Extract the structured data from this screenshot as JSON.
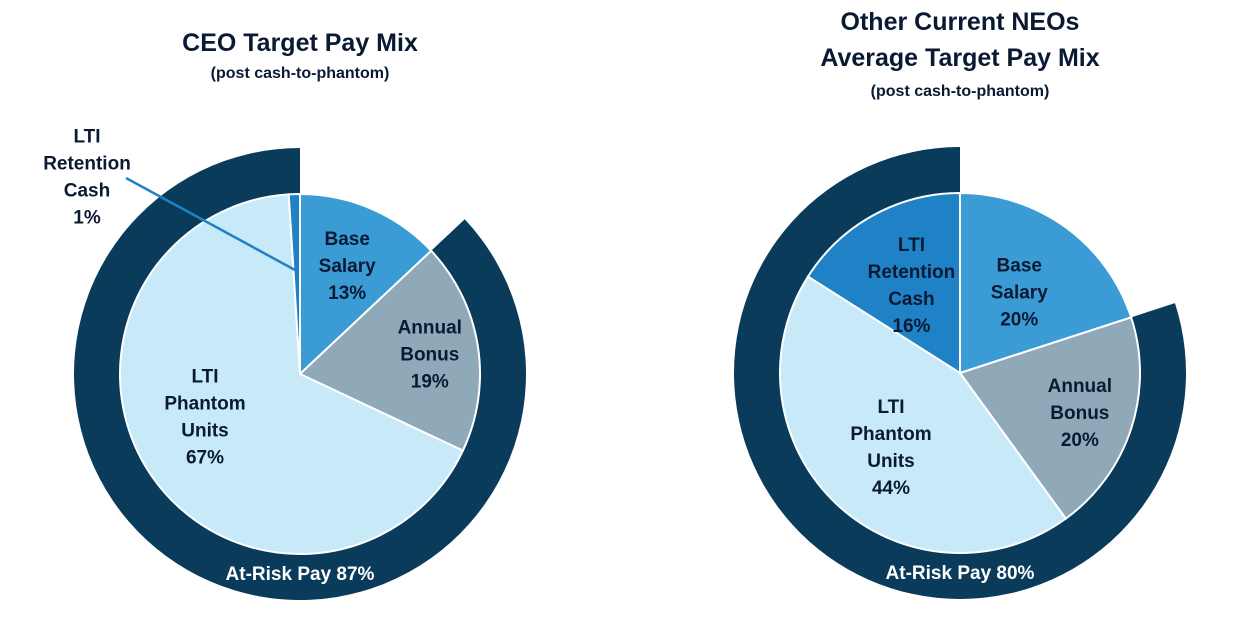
{
  "colors": {
    "ring": "#0b3b5b",
    "base_salary": "#3a9bd5",
    "annual_bonus": "#8fa9b8",
    "lti_phantom": "#c8e9f8",
    "lti_retention": "#1f82c6",
    "leader_line": "#1f82c6",
    "text": "#0a1a33",
    "ring_text": "#ffffff"
  },
  "chart_data": [
    {
      "type": "pie",
      "title_lines": [
        "CEO Target Pay Mix"
      ],
      "subtitle": "(post cash-to-phantom)",
      "slices": [
        {
          "key": "base_salary",
          "label_lines": [
            "Base",
            "Salary",
            "13%"
          ],
          "value": 13
        },
        {
          "key": "annual_bonus",
          "label_lines": [
            "Annual",
            "Bonus",
            "19%"
          ],
          "value": 19
        },
        {
          "key": "lti_phantom",
          "label_lines": [
            "LTI",
            "Phantom",
            "Units",
            "67%"
          ],
          "value": 67
        },
        {
          "key": "lti_retention",
          "label_lines": [
            "LTI",
            "Retention",
            "Cash",
            "1%"
          ],
          "value": 1,
          "callout": true
        }
      ],
      "outer_ring": {
        "label": "At-Risk Pay 87%",
        "value": 87
      }
    },
    {
      "type": "pie",
      "title_lines": [
        "Other Current NEOs",
        "Average Target Pay Mix"
      ],
      "subtitle": "(post cash-to-phantom)",
      "slices": [
        {
          "key": "base_salary",
          "label_lines": [
            "Base",
            "Salary",
            "20%"
          ],
          "value": 20
        },
        {
          "key": "annual_bonus",
          "label_lines": [
            "Annual",
            "Bonus",
            "20%"
          ],
          "value": 20
        },
        {
          "key": "lti_phantom",
          "label_lines": [
            "LTI",
            "Phantom",
            "Units",
            "44%"
          ],
          "value": 44
        },
        {
          "key": "lti_retention",
          "label_lines": [
            "LTI",
            "Retention",
            "Cash",
            "16%"
          ],
          "value": 16
        }
      ],
      "outer_ring": {
        "label": "At-Risk Pay 80%",
        "value": 80
      }
    }
  ]
}
